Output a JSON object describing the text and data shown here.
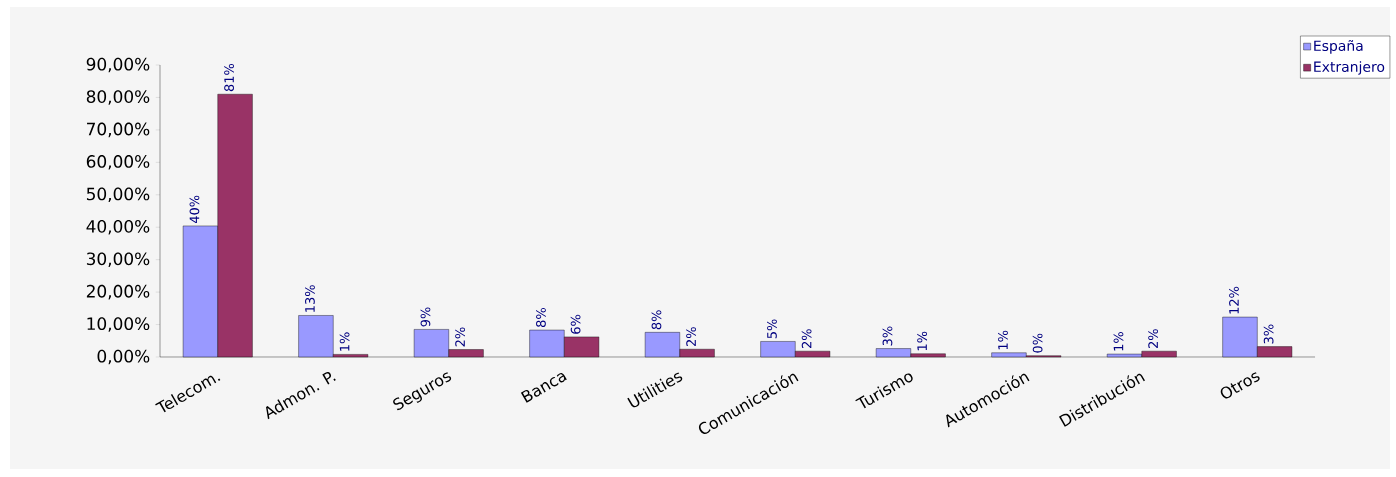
{
  "chart_data": {
    "type": "bar",
    "categories": [
      "Telecom.",
      "Admon. P.",
      "Seguros",
      "Banca",
      "Utilities",
      "Comunicación",
      "Turismo",
      "Automoción",
      "Distribución",
      "Otros"
    ],
    "series": [
      {
        "name": "España",
        "color": "#9999ff",
        "values": [
          40.4,
          12.8,
          8.5,
          8.3,
          7.6,
          4.8,
          2.6,
          1.3,
          0.9,
          12.3
        ],
        "value_labels": [
          "40%",
          "13%",
          "9%",
          "8%",
          "8%",
          "5%",
          "3%",
          "1%",
          "1%",
          "12%"
        ]
      },
      {
        "name": "Extranjero",
        "color": "#993366",
        "values": [
          81.0,
          0.8,
          2.3,
          6.2,
          2.4,
          1.8,
          1.0,
          0.4,
          1.8,
          3.2
        ],
        "value_labels": [
          "81%",
          "1%",
          "2%",
          "6%",
          "2%",
          "2%",
          "1%",
          "0%",
          "2%",
          "3%"
        ]
      }
    ],
    "ylim": [
      0,
      90
    ],
    "yticks": [
      {
        "value": 0,
        "label": "0,00%"
      },
      {
        "value": 10,
        "label": "10,00%"
      },
      {
        "value": 20,
        "label": "20,00%"
      },
      {
        "value": 30,
        "label": "30,00%"
      },
      {
        "value": 40,
        "label": "40,00%"
      },
      {
        "value": 50,
        "label": "50,00%"
      },
      {
        "value": 60,
        "label": "60,00%"
      },
      {
        "value": 70,
        "label": "70,00%"
      },
      {
        "value": 80,
        "label": "80,00%"
      },
      {
        "value": 90,
        "label": "90,00%"
      }
    ],
    "legend": "top right"
  }
}
